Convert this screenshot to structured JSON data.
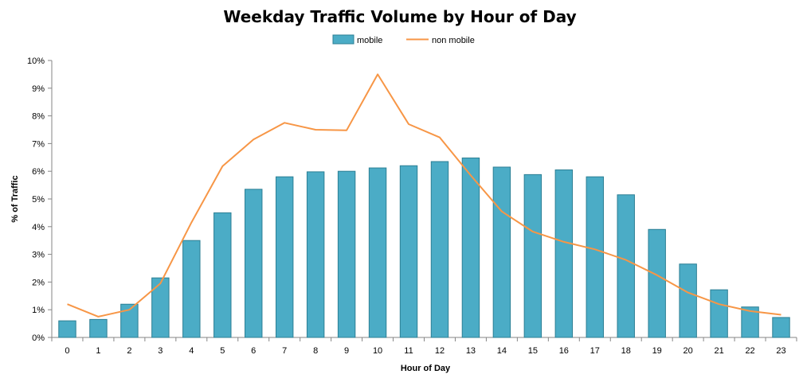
{
  "chart_data": {
    "type": "bar",
    "title": "Weekday Traffic Volume by Hour of Day",
    "xlabel": "Hour of Day",
    "ylabel": "% of Traffic",
    "categories": [
      "0",
      "1",
      "2",
      "3",
      "4",
      "5",
      "6",
      "7",
      "8",
      "9",
      "10",
      "11",
      "12",
      "13",
      "14",
      "15",
      "16",
      "17",
      "18",
      "19",
      "20",
      "21",
      "22",
      "23"
    ],
    "ylim": [
      0,
      10
    ],
    "yticks": [
      "0%",
      "1%",
      "2%",
      "3%",
      "4%",
      "5%",
      "6%",
      "7%",
      "8%",
      "9%",
      "10%"
    ],
    "legend_position": "top-center",
    "grid": false,
    "series": [
      {
        "name": "mobile",
        "type": "bar",
        "color": "#4BACC6",
        "values": [
          0.6,
          0.65,
          1.2,
          2.15,
          3.5,
          4.5,
          5.35,
          5.8,
          5.98,
          6.0,
          6.12,
          6.2,
          6.35,
          6.48,
          6.15,
          5.88,
          6.05,
          5.8,
          5.15,
          3.9,
          2.65,
          1.72,
          1.1,
          0.72
        ]
      },
      {
        "name": "non mobile",
        "type": "line",
        "color": "#F79646",
        "values": [
          1.2,
          0.75,
          1.0,
          1.95,
          4.15,
          6.18,
          7.15,
          7.75,
          7.5,
          7.48,
          9.5,
          7.7,
          7.22,
          5.85,
          4.55,
          3.82,
          3.45,
          3.18,
          2.8,
          2.25,
          1.62,
          1.2,
          0.95,
          0.82
        ]
      }
    ]
  },
  "colors": {
    "bar_fill": "#4BACC6",
    "bar_stroke": "#2C7F94",
    "line": "#F79646",
    "axis": "#868686"
  }
}
